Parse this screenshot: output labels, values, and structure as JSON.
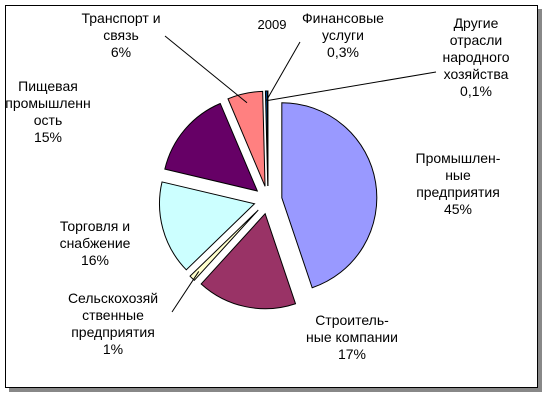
{
  "chart_data": {
    "type": "pie",
    "title": "2009",
    "categories": [
      "Промышлен-\nные\nпредприятия",
      "Строитель-\nные компании",
      "Сельскохозяй\nственные\nпредприятия",
      "Торговля и\nснабжение",
      "Пищевая\nпромышленн\nость",
      "Транспорт и\nсвязь",
      "Финансовые\nуслуги",
      "Другие\nотрасли\nнародного\nхозяйства"
    ],
    "values": [
      45,
      17,
      1,
      16,
      15,
      6,
      0.3,
      0.1
    ],
    "value_labels": [
      "45%",
      "17%",
      "1%",
      "16%",
      "15%",
      "6%",
      "0,3%",
      "0,1%"
    ],
    "colors": [
      "#9999ff",
      "#993366",
      "#ffffcc",
      "#ccffff",
      "#660066",
      "#ff8080",
      "#0066cc",
      "#ccccff"
    ]
  }
}
